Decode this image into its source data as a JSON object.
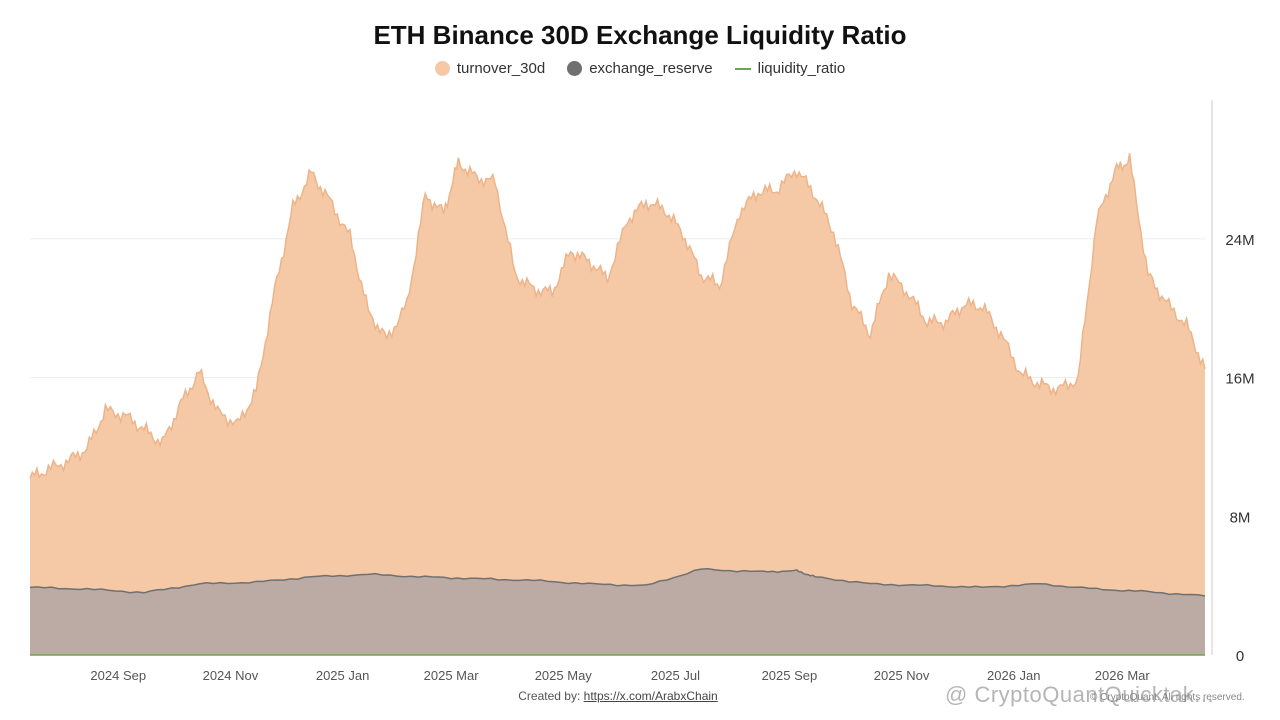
{
  "colors": {
    "turnover": "#f5c9a6",
    "turnover_line": "#edb48a",
    "reserve": "#bcaaa4",
    "reserve_line": "#707070",
    "ratio": "#6aa84f",
    "grid": "#eeeeee",
    "watermark": "#e9c7ae"
  },
  "icons": {
    "legend_turnover": "circle-icon",
    "legend_reserve": "circle-icon",
    "legend_ratio": "line-icon",
    "corner_logo": "binance-icon"
  },
  "watermark": "CryptoQuant",
  "footer": {
    "created_by_label": "Created by:",
    "created_by_link": "https://x.com/ArabxChain",
    "overlay_text": "@ CryptoQuantQuicktak...",
    "rights_text": "© CryptoQuant. All rights reserved."
  },
  "chart_data": {
    "type": "area",
    "title": "ETH Binance 30D Exchange Liquidity Ratio",
    "legend_position": "top-center",
    "grid": true,
    "y_axis": {
      "position": "right",
      "ylim": [
        0,
        32000000
      ],
      "ticks": [
        0,
        8000000,
        16000000,
        24000000
      ],
      "tick_labels": [
        "0",
        "8M",
        "16M",
        "24M"
      ]
    },
    "x_axis": {
      "range": [
        "2024-07-15",
        "2026-04-15"
      ],
      "ticks": [
        "2024-09-01",
        "2024-11-01",
        "2025-01-01",
        "2025-03-01",
        "2025-05-01",
        "2025-07-01",
        "2025-09-01",
        "2025-11-01",
        "2026-01-01",
        "2026-03-01"
      ],
      "tick_labels": [
        "2024 Sep",
        "2024 Nov",
        "2025 Jan",
        "2025 Mar",
        "2025 May",
        "2025 Jul",
        "2025 Sep",
        "2025 Nov",
        "2026 Jan",
        "2026 Mar"
      ]
    },
    "series": [
      {
        "name": "turnover_30d",
        "x": [
          "2024-07-15",
          "2024-07-25",
          "2024-08-05",
          "2024-08-15",
          "2024-08-25",
          "2024-09-05",
          "2024-09-15",
          "2024-09-25",
          "2024-10-05",
          "2024-10-15",
          "2024-10-25",
          "2024-11-05",
          "2024-11-15",
          "2024-11-25",
          "2024-12-05",
          "2024-12-15",
          "2024-12-25",
          "2025-01-05",
          "2025-01-15",
          "2025-01-25",
          "2025-02-05",
          "2025-02-15",
          "2025-02-25",
          "2025-03-05",
          "2025-03-15",
          "2025-03-25",
          "2025-04-05",
          "2025-04-15",
          "2025-04-25",
          "2025-05-05",
          "2025-05-15",
          "2025-05-25",
          "2025-06-05",
          "2025-06-15",
          "2025-06-25",
          "2025-07-05",
          "2025-07-15",
          "2025-07-25",
          "2025-08-05",
          "2025-08-15",
          "2025-08-25",
          "2025-09-05",
          "2025-09-15",
          "2025-09-25",
          "2025-10-05",
          "2025-10-15",
          "2025-10-25",
          "2025-11-05",
          "2025-11-15",
          "2025-11-25",
          "2025-12-05",
          "2025-12-15",
          "2025-12-25",
          "2026-01-05",
          "2026-01-15",
          "2026-01-25",
          "2026-02-05",
          "2026-02-15",
          "2026-02-25",
          "2026-03-05",
          "2026-03-15",
          "2026-03-25",
          "2026-04-05",
          "2026-04-15"
        ],
        "values": [
          10200000,
          10700000,
          11200000,
          11900000,
          14100000,
          13800000,
          13000000,
          12200000,
          14500000,
          16300000,
          14000000,
          13300000,
          15200000,
          21000000,
          25800000,
          27800000,
          26200000,
          24100000,
          19800000,
          18200000,
          20200000,
          26500000,
          25500000,
          28400000,
          27500000,
          27300000,
          21900000,
          21100000,
          20900000,
          23300000,
          22700000,
          21700000,
          25100000,
          26100000,
          25700000,
          24300000,
          21900000,
          21300000,
          25600000,
          26700000,
          26800000,
          28000000,
          26500000,
          24400000,
          20300000,
          18500000,
          22000000,
          20800000,
          19200000,
          19200000,
          20200000,
          20100000,
          18500000,
          16200000,
          15600000,
          15300000,
          15900000,
          25000000,
          27900000,
          28600000,
          21900000,
          20300000,
          19000000,
          16500000
        ]
      },
      {
        "name": "exchange_reserve",
        "x": [
          "2024-07-15",
          "2024-08-15",
          "2024-09-15",
          "2024-10-15",
          "2024-11-15",
          "2024-12-15",
          "2025-01-15",
          "2025-02-15",
          "2025-03-15",
          "2025-04-15",
          "2025-05-15",
          "2025-06-15",
          "2025-07-15",
          "2025-08-15",
          "2025-09-05",
          "2025-09-15",
          "2025-10-15",
          "2025-11-15",
          "2025-12-15",
          "2026-01-15",
          "2026-02-15",
          "2026-03-15",
          "2026-04-15"
        ],
        "values": [
          3900000,
          3800000,
          3600000,
          4100000,
          4200000,
          4500000,
          4650000,
          4500000,
          4400000,
          4300000,
          4100000,
          4000000,
          4950000,
          4800000,
          4850000,
          4500000,
          4100000,
          4000000,
          3900000,
          4100000,
          3800000,
          3650000,
          3400000
        ]
      },
      {
        "name": "liquidity_ratio",
        "x": [
          "2024-07-15",
          "2026-04-15"
        ],
        "values": [
          0,
          0
        ]
      }
    ]
  }
}
